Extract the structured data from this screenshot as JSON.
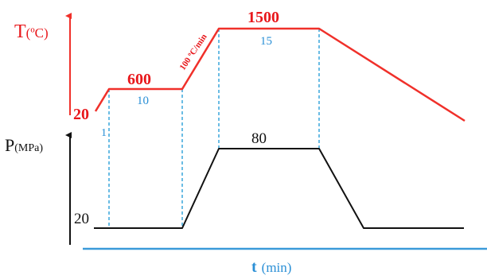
{
  "colors": {
    "temperature": "#f0302a",
    "temperature_text": "#e8171b",
    "pressure": "#111111",
    "guide": "#2a9fd8",
    "time_axis": "#3a9ad9",
    "duration_text": "#2a8fd6"
  },
  "temperature": {
    "axis_label": "T",
    "axis_unit": "(ºC)",
    "start_value": "20",
    "hold1_value": "600",
    "hold1_time": "10",
    "ramp1_time": "1",
    "ramp2_rate": "100 ºC/min",
    "hold2_value": "1500",
    "hold2_time": "15"
  },
  "pressure": {
    "axis_label": "P",
    "axis_unit": "(MPa)",
    "low_value": "20",
    "high_value": "80"
  },
  "time_axis": {
    "label": "t",
    "unit": "(min)"
  }
}
